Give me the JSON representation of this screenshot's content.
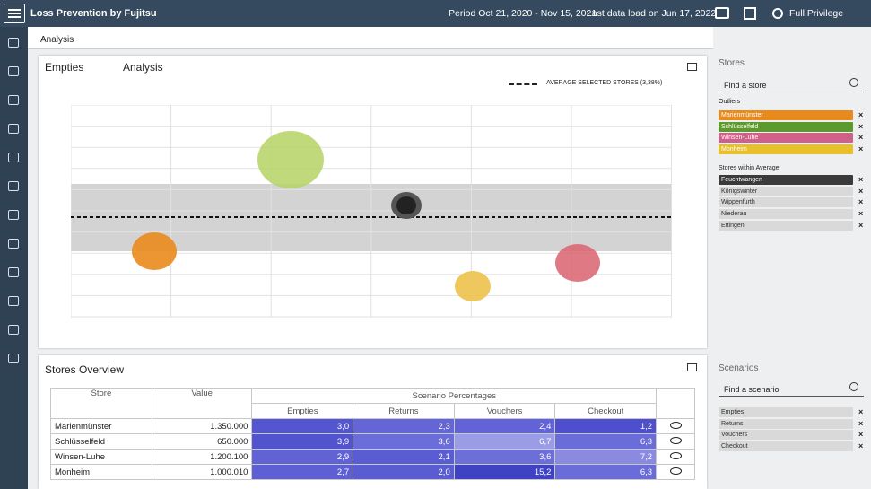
{
  "header": {
    "title": "Loss Prevention by Fujitsu",
    "period": "Period Oct 21, 2020 - Nov 15, 2021",
    "last_load": "Last data load on Jun 17, 2022",
    "privilege": "Full Privilege"
  },
  "breadcrumb": "Analysis",
  "chart_panel": {
    "tabs": [
      "Empties",
      "Analysis"
    ],
    "legend": "AVERAGE SELECTED STORES (3,38%)"
  },
  "overview": {
    "title": "Stores Overview",
    "columns": [
      "Store",
      "Value",
      "Scenario Percentages"
    ],
    "subcolumns": [
      "Empties",
      "Returns",
      "Vouchers",
      "Checkout"
    ],
    "rows": [
      [
        "Marienmünster",
        "1.350.000",
        "3,0",
        "2,3",
        "2,4",
        "1,2"
      ],
      [
        "Schlüsselfeld",
        "650.000",
        "3,9",
        "3,6",
        "6,7",
        "6,3"
      ],
      [
        "Winsen-Luhe",
        "1.200.100",
        "2,9",
        "2,1",
        "3,6",
        "7,2"
      ],
      [
        "Monheim",
        "1.000.010",
        "2,7",
        "2,0",
        "15,2",
        "6,3"
      ]
    ]
  },
  "sidebar": {
    "stores_title": "Stores",
    "store_search": "Find a store",
    "outliers_title": "Outliers",
    "outliers": [
      "Marienmünster",
      "Schlüsselfeld",
      "Winsen-Luhe",
      "Monheim"
    ],
    "within_title": "Stores within Average",
    "within": [
      "Feuchtwangen",
      "Königswinter",
      "Wippenfurth",
      "Niederau",
      "Ettingen"
    ],
    "scenarios_title": "Scenarios",
    "scenario_search": "Find a scenario",
    "scenarios": [
      "Empties",
      "Returns",
      "Vouchers",
      "Checkout"
    ]
  }
}
